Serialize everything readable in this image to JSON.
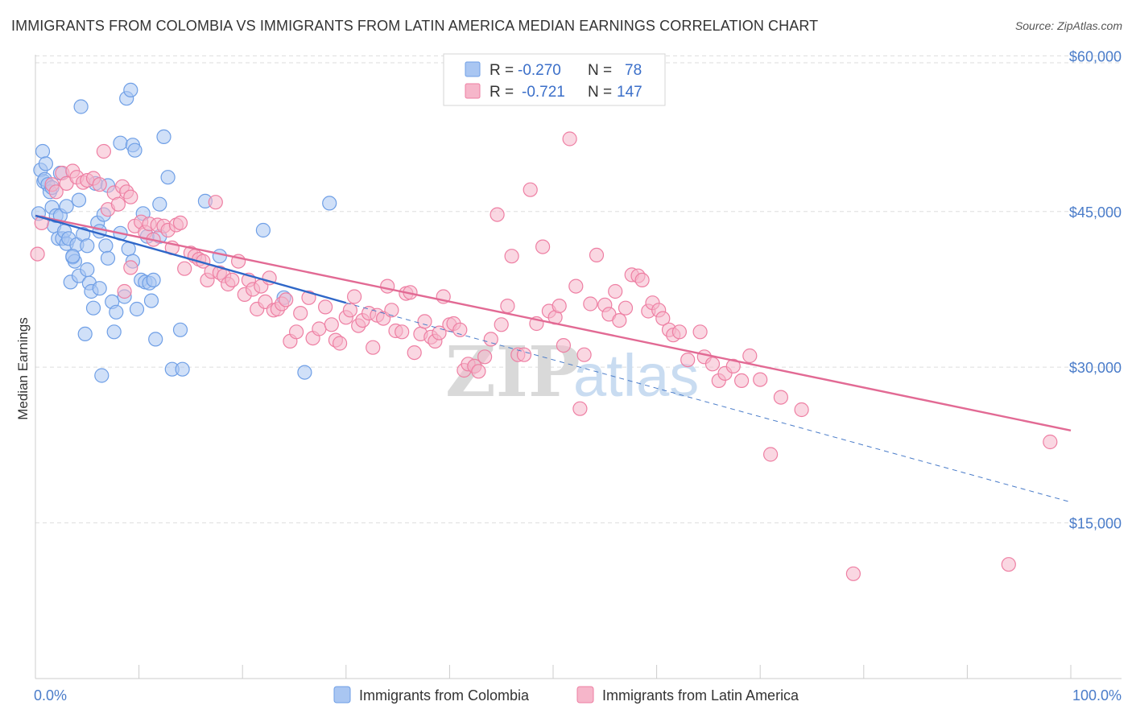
{
  "title": "IMMIGRANTS FROM COLOMBIA VS IMMIGRANTS FROM LATIN AMERICA MEDIAN EARNINGS CORRELATION CHART",
  "source": "Source: ZipAtlas.com",
  "watermark": {
    "zip": "ZIP",
    "atlas": "atlas"
  },
  "legend": {
    "rows": [
      {
        "r_label": "R =",
        "r_value": "-0.270",
        "n_label": "N =",
        "n_value": "78",
        "color": "#9bbcf0"
      },
      {
        "r_label": "R =",
        "r_value": "-0.721",
        "n_label": "N =",
        "n_value": "147",
        "color": "#f3a9c0"
      }
    ]
  },
  "chart_data": {
    "type": "scatter",
    "title": "IMMIGRANTS FROM COLOMBIA VS IMMIGRANTS FROM LATIN AMERICA MEDIAN EARNINGS CORRELATION CHART",
    "xlabel": "",
    "ylabel": "Median Earnings",
    "xlim": [
      0,
      100
    ],
    "ylim": [
      0,
      61500
    ],
    "x_tick_labels": [
      "0.0%",
      "100.0%"
    ],
    "y_ticks": [
      15000,
      30000,
      45000,
      60000
    ],
    "y_tick_labels": [
      "$15,000",
      "$30,000",
      "$45,000",
      "$60,000"
    ],
    "grid": "horizontal dashed",
    "legend_position": "top-center",
    "series": [
      {
        "name": "Immigrants from Colombia",
        "color": "#6f9fe6",
        "fill": "#a9c6f2",
        "trend": {
          "x": [
            0,
            30
          ],
          "y": [
            44600,
            36200
          ]
        },
        "trend_extension": {
          "x": [
            30,
            100
          ],
          "y": [
            36200,
            17000
          ]
        },
        "points": [
          [
            0.3,
            44800
          ],
          [
            0.5,
            49000
          ],
          [
            0.7,
            50800
          ],
          [
            0.8,
            47900
          ],
          [
            0.9,
            48100
          ],
          [
            1.0,
            49600
          ],
          [
            1.2,
            47600
          ],
          [
            1.4,
            46900
          ],
          [
            1.6,
            45400
          ],
          [
            1.8,
            43600
          ],
          [
            2.0,
            44600
          ],
          [
            2.2,
            42400
          ],
          [
            2.4,
            44600
          ],
          [
            2.6,
            42400
          ],
          [
            2.8,
            43100
          ],
          [
            3.0,
            41900
          ],
          [
            3.2,
            42400
          ],
          [
            3.4,
            38200
          ],
          [
            3.6,
            40600
          ],
          [
            3.8,
            40200
          ],
          [
            4.0,
            41800
          ],
          [
            4.2,
            38800
          ],
          [
            4.4,
            55100
          ],
          [
            4.6,
            42800
          ],
          [
            4.8,
            33200
          ],
          [
            5.0,
            41700
          ],
          [
            5.2,
            38100
          ],
          [
            5.4,
            37300
          ],
          [
            5.6,
            35700
          ],
          [
            5.8,
            47700
          ],
          [
            6.0,
            43900
          ],
          [
            6.2,
            37600
          ],
          [
            6.4,
            29200
          ],
          [
            6.6,
            44700
          ],
          [
            6.8,
            41700
          ],
          [
            7.0,
            40500
          ],
          [
            7.4,
            36300
          ],
          [
            7.6,
            33400
          ],
          [
            7.8,
            35300
          ],
          [
            8.2,
            42900
          ],
          [
            8.6,
            36800
          ],
          [
            9.0,
            41400
          ],
          [
            9.4,
            40200
          ],
          [
            9.8,
            35600
          ],
          [
            10.2,
            38400
          ],
          [
            10.4,
            44800
          ],
          [
            8.8,
            55900
          ],
          [
            9.2,
            56700
          ],
          [
            8.2,
            51600
          ],
          [
            9.4,
            51400
          ],
          [
            9.6,
            50900
          ],
          [
            10.6,
            38200
          ],
          [
            10.8,
            42600
          ],
          [
            11.0,
            38100
          ],
          [
            11.2,
            36400
          ],
          [
            11.4,
            38400
          ],
          [
            11.6,
            32700
          ],
          [
            12.0,
            45700
          ],
          [
            12.4,
            52200
          ],
          [
            12.8,
            48300
          ],
          [
            13.2,
            29800
          ],
          [
            14.0,
            33600
          ],
          [
            14.2,
            29800
          ],
          [
            16.4,
            46000
          ],
          [
            17.8,
            40700
          ],
          [
            22.0,
            43200
          ],
          [
            24.0,
            36700
          ],
          [
            26.0,
            29500
          ],
          [
            28.4,
            45800
          ],
          [
            2.4,
            48700
          ],
          [
            1.6,
            47300
          ],
          [
            3.0,
            45500
          ],
          [
            4.2,
            46100
          ],
          [
            6.2,
            43100
          ],
          [
            7.0,
            47500
          ],
          [
            12.0,
            42600
          ],
          [
            5.0,
            39400
          ],
          [
            3.6,
            40700
          ]
        ]
      },
      {
        "name": "Immigrants from Latin America",
        "color": "#ee7fa3",
        "fill": "#f6b6ca",
        "trend": {
          "x": [
            0,
            100
          ],
          "y": [
            44600,
            23900
          ]
        },
        "points": [
          [
            0.2,
            40900
          ],
          [
            0.6,
            43900
          ],
          [
            1.6,
            47600
          ],
          [
            2.0,
            46900
          ],
          [
            2.6,
            48700
          ],
          [
            3.0,
            47700
          ],
          [
            3.6,
            48900
          ],
          [
            4.0,
            48300
          ],
          [
            4.6,
            47800
          ],
          [
            5.0,
            48000
          ],
          [
            5.6,
            48200
          ],
          [
            6.2,
            47600
          ],
          [
            6.6,
            50800
          ],
          [
            7.0,
            45200
          ],
          [
            7.6,
            46800
          ],
          [
            8.0,
            45700
          ],
          [
            8.4,
            47400
          ],
          [
            8.8,
            46900
          ],
          [
            9.2,
            46400
          ],
          [
            9.6,
            43600
          ],
          [
            10.2,
            44000
          ],
          [
            10.6,
            43000
          ],
          [
            11.0,
            43800
          ],
          [
            11.4,
            42300
          ],
          [
            11.8,
            43700
          ],
          [
            12.4,
            43600
          ],
          [
            12.8,
            43200
          ],
          [
            13.2,
            41500
          ],
          [
            13.6,
            43700
          ],
          [
            14.0,
            43900
          ],
          [
            14.4,
            39500
          ],
          [
            15.0,
            41000
          ],
          [
            15.4,
            40700
          ],
          [
            15.8,
            40400
          ],
          [
            16.2,
            40200
          ],
          [
            16.6,
            38400
          ],
          [
            17.0,
            39200
          ],
          [
            17.4,
            45900
          ],
          [
            17.8,
            39100
          ],
          [
            18.2,
            38800
          ],
          [
            18.6,
            38000
          ],
          [
            19.0,
            38400
          ],
          [
            19.6,
            40200
          ],
          [
            20.2,
            37000
          ],
          [
            20.6,
            38400
          ],
          [
            21.0,
            37500
          ],
          [
            21.4,
            35600
          ],
          [
            21.8,
            37800
          ],
          [
            22.2,
            36300
          ],
          [
            22.6,
            38600
          ],
          [
            23.0,
            35500
          ],
          [
            23.4,
            35600
          ],
          [
            23.8,
            36100
          ],
          [
            24.2,
            36500
          ],
          [
            24.6,
            32500
          ],
          [
            25.2,
            33400
          ],
          [
            25.6,
            35200
          ],
          [
            26.4,
            36700
          ],
          [
            26.8,
            32800
          ],
          [
            27.4,
            33700
          ],
          [
            28.0,
            35800
          ],
          [
            28.6,
            34100
          ],
          [
            29.0,
            32600
          ],
          [
            29.4,
            32300
          ],
          [
            30.0,
            34800
          ],
          [
            30.4,
            35500
          ],
          [
            30.8,
            36800
          ],
          [
            31.2,
            34000
          ],
          [
            31.6,
            34500
          ],
          [
            32.2,
            35200
          ],
          [
            32.6,
            31900
          ],
          [
            33.0,
            35000
          ],
          [
            33.6,
            34700
          ],
          [
            34.0,
            37800
          ],
          [
            34.4,
            35500
          ],
          [
            34.8,
            33500
          ],
          [
            35.4,
            33400
          ],
          [
            35.8,
            37100
          ],
          [
            36.2,
            37200
          ],
          [
            36.6,
            31400
          ],
          [
            37.2,
            33200
          ],
          [
            37.6,
            34400
          ],
          [
            38.2,
            32900
          ],
          [
            38.6,
            32500
          ],
          [
            39.0,
            33300
          ],
          [
            39.4,
            36800
          ],
          [
            40.0,
            34100
          ],
          [
            40.4,
            34200
          ],
          [
            41.0,
            33600
          ],
          [
            41.4,
            29700
          ],
          [
            41.8,
            30300
          ],
          [
            42.4,
            30100
          ],
          [
            42.8,
            29600
          ],
          [
            43.4,
            31000
          ],
          [
            44.0,
            32700
          ],
          [
            44.6,
            44700
          ],
          [
            45.0,
            34100
          ],
          [
            45.6,
            35900
          ],
          [
            46.0,
            40700
          ],
          [
            46.6,
            31200
          ],
          [
            47.2,
            31200
          ],
          [
            47.8,
            47100
          ],
          [
            48.4,
            34200
          ],
          [
            49.0,
            41600
          ],
          [
            49.6,
            35400
          ],
          [
            50.2,
            34800
          ],
          [
            50.6,
            35900
          ],
          [
            51.0,
            32100
          ],
          [
            51.6,
            52000
          ],
          [
            52.2,
            37800
          ],
          [
            52.6,
            26000
          ],
          [
            53.0,
            31200
          ],
          [
            53.6,
            36100
          ],
          [
            54.2,
            40800
          ],
          [
            55.0,
            36000
          ],
          [
            55.4,
            35100
          ],
          [
            56.0,
            37300
          ],
          [
            56.4,
            34500
          ],
          [
            57.0,
            35700
          ],
          [
            57.6,
            38900
          ],
          [
            58.2,
            38800
          ],
          [
            58.6,
            38400
          ],
          [
            59.2,
            35400
          ],
          [
            59.6,
            36200
          ],
          [
            60.2,
            35500
          ],
          [
            60.6,
            34700
          ],
          [
            61.2,
            33600
          ],
          [
            61.6,
            33100
          ],
          [
            62.2,
            33400
          ],
          [
            63.0,
            30700
          ],
          [
            64.2,
            33400
          ],
          [
            64.6,
            31000
          ],
          [
            65.4,
            30300
          ],
          [
            66.0,
            28700
          ],
          [
            66.6,
            29400
          ],
          [
            67.4,
            30100
          ],
          [
            68.2,
            28700
          ],
          [
            69.0,
            31100
          ],
          [
            70.0,
            28800
          ],
          [
            71.0,
            21600
          ],
          [
            72.0,
            27100
          ],
          [
            74.0,
            25900
          ],
          [
            79.0,
            10100
          ],
          [
            94.0,
            11000
          ],
          [
            98.0,
            22800
          ],
          [
            9.2,
            39600
          ],
          [
            8.6,
            37300
          ]
        ]
      }
    ]
  },
  "bottom_legend": [
    {
      "label": "Immigrants from Colombia"
    },
    {
      "label": "Immigrants from Latin America"
    }
  ]
}
